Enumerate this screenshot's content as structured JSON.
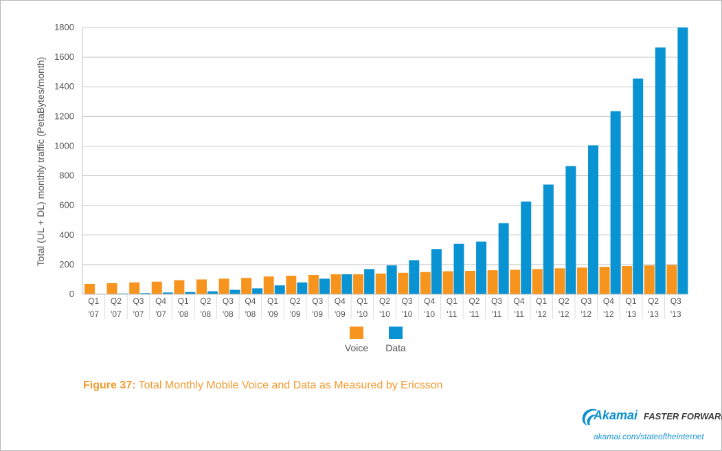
{
  "chart_data": {
    "type": "bar",
    "ylabel": "Total (UL + DL) monthly traffic (PetaBytes/month)",
    "xlabel": "",
    "ylim": [
      0,
      1800
    ],
    "yticks": [
      0,
      200,
      400,
      600,
      800,
      1000,
      1200,
      1400,
      1600,
      1800
    ],
    "grid": true,
    "legend_position": "bottom-center",
    "categories": [
      [
        "Q1",
        "'07"
      ],
      [
        "Q2",
        "'07"
      ],
      [
        "Q3",
        "'07"
      ],
      [
        "Q4",
        "'07"
      ],
      [
        "Q1",
        "'08"
      ],
      [
        "Q2",
        "'08"
      ],
      [
        "Q3",
        "'08"
      ],
      [
        "Q4",
        "'08"
      ],
      [
        "Q1",
        "'09"
      ],
      [
        "Q2",
        "'09"
      ],
      [
        "Q3",
        "'09"
      ],
      [
        "Q4",
        "'09"
      ],
      [
        "Q1",
        "'10"
      ],
      [
        "Q2",
        "'10"
      ],
      [
        "Q3",
        "'10"
      ],
      [
        "Q4",
        "'10"
      ],
      [
        "Q1",
        "'11"
      ],
      [
        "Q2",
        "'11"
      ],
      [
        "Q3",
        "'11"
      ],
      [
        "Q4",
        "'11"
      ],
      [
        "Q1",
        "'12"
      ],
      [
        "Q2",
        "'12"
      ],
      [
        "Q3",
        "'12"
      ],
      [
        "Q4",
        "'12"
      ],
      [
        "Q1",
        "'13"
      ],
      [
        "Q2",
        "'13"
      ],
      [
        "Q3",
        "'13"
      ]
    ],
    "series": [
      {
        "name": "Voice",
        "color": "#f7941d",
        "values": [
          70,
          75,
          80,
          85,
          95,
          100,
          105,
          110,
          120,
          125,
          130,
          135,
          135,
          140,
          145,
          150,
          155,
          158,
          162,
          165,
          170,
          175,
          180,
          185,
          190,
          195,
          198
        ]
      },
      {
        "name": "Data",
        "color": "#0a93d2",
        "values": [
          3,
          5,
          8,
          12,
          15,
          20,
          30,
          40,
          60,
          80,
          105,
          135,
          170,
          195,
          230,
          305,
          340,
          355,
          480,
          625,
          740,
          865,
          1005,
          1235,
          1455,
          1665,
          1800
        ]
      }
    ]
  },
  "caption": {
    "label": "Figure 37:",
    "text": " Total Monthly Mobile Voice and Data as Measured by Ericsson"
  },
  "brand": {
    "name": "Akamai",
    "tagline": "FASTER FORWARD",
    "url": "akamai.com/stateoftheinternet",
    "logo_icon": "akamai-wave-logo-icon"
  }
}
